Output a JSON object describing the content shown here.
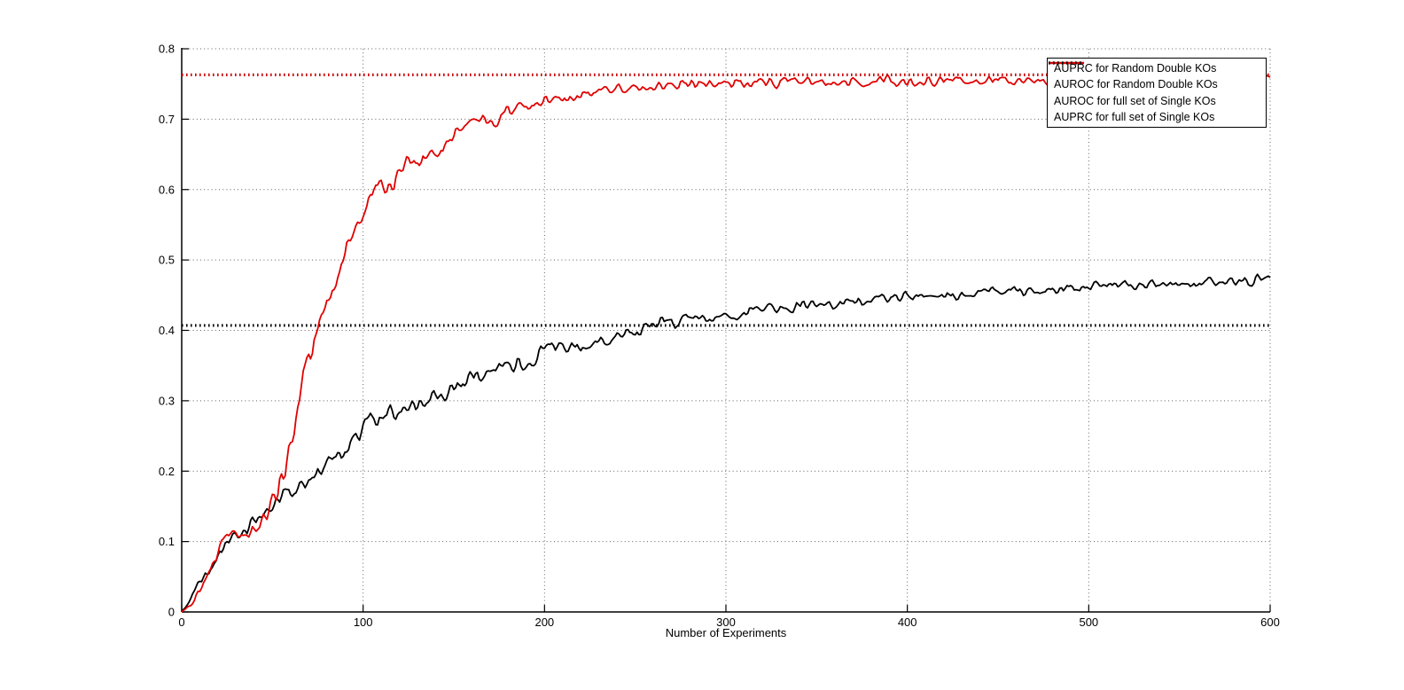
{
  "chart_data": {
    "type": "line",
    "title": "",
    "xlabel": "Number of Experiments",
    "ylabel": "",
    "xlim": [
      0,
      600
    ],
    "ylim": [
      0,
      0.8
    ],
    "x_ticks": [
      0,
      100,
      200,
      300,
      400,
      500,
      600
    ],
    "x_tick_labels": [
      "0",
      "100",
      "200",
      "300",
      "400",
      "500",
      "600"
    ],
    "y_ticks": [
      0,
      0.1,
      0.2,
      0.3,
      0.4,
      0.5,
      0.6,
      0.7,
      0.8
    ],
    "y_tick_labels": [
      "0",
      "0.1",
      "0.2",
      "0.3",
      "0.4",
      "0.5",
      "0.6",
      "0.7",
      "0.8"
    ],
    "grid": true,
    "box": false,
    "legend_position": "top-right",
    "colors": {
      "black_series": "#000000",
      "red_series": "#e00000",
      "red_reference": "#cc0000",
      "grid": "#606060",
      "axis": "#000000",
      "background": "#ffffff",
      "legend_border": "#000000"
    },
    "noise_seed": 20240613,
    "series": [
      {
        "name": "AUPRC for Random Double KOs",
        "color_key": "black_series",
        "style": "solid",
        "line_width": 1.8,
        "kind": "noisy_curve",
        "seed": 77,
        "anchors_x": [
          0,
          5,
          10,
          15,
          20,
          25,
          30,
          35,
          40,
          45,
          50,
          60,
          70,
          80,
          90,
          100,
          104,
          108,
          115,
          125,
          135,
          150,
          160,
          170,
          180,
          190,
          200,
          210,
          220,
          230,
          240,
          250,
          258,
          265,
          272,
          280,
          290,
          300,
          315,
          330,
          345,
          360,
          380,
          400,
          420,
          440,
          460,
          480,
          500,
          520,
          540,
          560,
          580,
          600
        ],
        "anchors_y": [
          0,
          0.02,
          0.045,
          0.06,
          0.08,
          0.1,
          0.105,
          0.115,
          0.125,
          0.14,
          0.155,
          0.17,
          0.185,
          0.21,
          0.23,
          0.255,
          0.29,
          0.27,
          0.28,
          0.29,
          0.3,
          0.32,
          0.33,
          0.345,
          0.35,
          0.36,
          0.37,
          0.375,
          0.38,
          0.39,
          0.395,
          0.398,
          0.4,
          0.415,
          0.405,
          0.418,
          0.417,
          0.422,
          0.43,
          0.433,
          0.437,
          0.44,
          0.443,
          0.448,
          0.452,
          0.455,
          0.457,
          0.459,
          0.461,
          0.464,
          0.466,
          0.468,
          0.47,
          0.473
        ],
        "noise_amp_x": [
          0,
          30,
          80,
          150,
          250,
          400,
          600
        ],
        "noise_amp": [
          0.003,
          0.008,
          0.01,
          0.01,
          0.008,
          0.006,
          0.006
        ]
      },
      {
        "name": "AUROC for Random Double KOs",
        "color_key": "red_series",
        "style": "solid",
        "line_width": 1.8,
        "kind": "noisy_curve",
        "seed": 913,
        "anchors_x": [
          0,
          5,
          10,
          15,
          20,
          25,
          30,
          38,
          45,
          50,
          55,
          60,
          65,
          70,
          75,
          80,
          85,
          90,
          95,
          100,
          105,
          110,
          115,
          120,
          127,
          135,
          142,
          150,
          158,
          165,
          172,
          180,
          190,
          200,
          212,
          225,
          240,
          255,
          270,
          285,
          300,
          320,
          340,
          360,
          380,
          400,
          430,
          460,
          490,
          520,
          550,
          580,
          600
        ],
        "anchors_y": [
          0,
          0.008,
          0.03,
          0.055,
          0.085,
          0.105,
          0.11,
          0.118,
          0.13,
          0.155,
          0.19,
          0.24,
          0.3,
          0.36,
          0.41,
          0.45,
          0.48,
          0.515,
          0.54,
          0.565,
          0.6,
          0.615,
          0.6,
          0.625,
          0.64,
          0.655,
          0.645,
          0.675,
          0.69,
          0.7,
          0.695,
          0.713,
          0.72,
          0.724,
          0.73,
          0.736,
          0.742,
          0.745,
          0.748,
          0.75,
          0.751,
          0.752,
          0.753,
          0.753,
          0.754,
          0.754,
          0.755,
          0.755,
          0.756,
          0.755,
          0.756,
          0.756,
          0.757
        ],
        "noise_amp_x": [
          0,
          30,
          60,
          120,
          180,
          250,
          400,
          600
        ],
        "noise_amp": [
          0.003,
          0.008,
          0.013,
          0.013,
          0.008,
          0.006,
          0.006,
          0.006
        ]
      },
      {
        "name": "AUROC for full set of Single KOs",
        "color_key": "red_reference",
        "style": "dotted",
        "line_width": 3.2,
        "kind": "reference_line",
        "value": 0.763
      },
      {
        "name": "AUPRC for full set of Single KOs",
        "color_key": "black_series",
        "style": "dotted",
        "line_width": 3.2,
        "kind": "reference_line",
        "value": 0.407
      }
    ]
  }
}
